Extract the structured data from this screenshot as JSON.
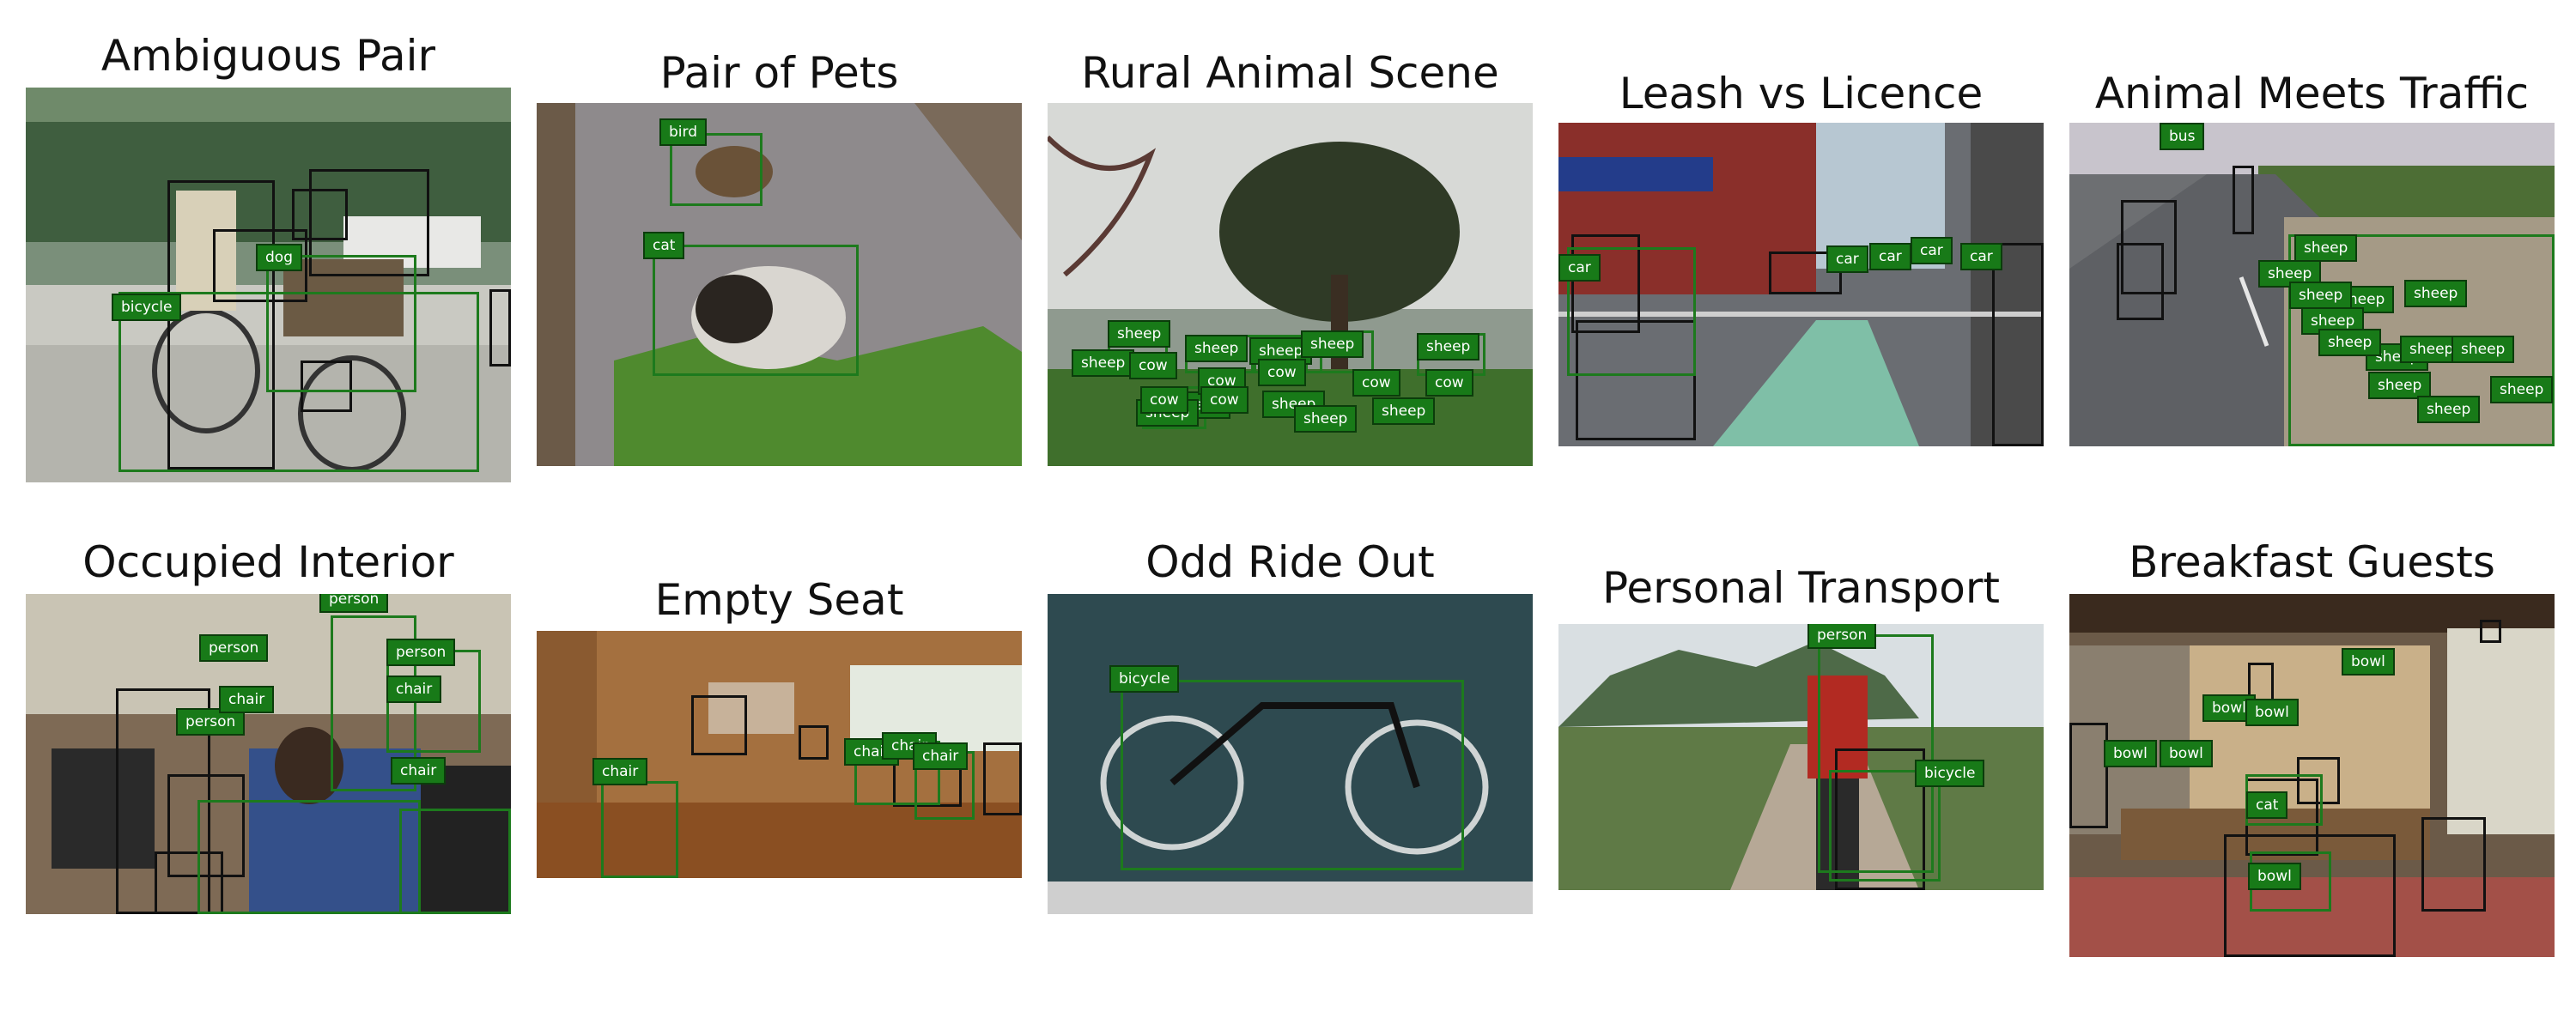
{
  "panels": [
    {
      "title": "Ambiguous Pair",
      "labels": [
        "bicycle",
        "dog"
      ]
    },
    {
      "title": "Pair of Pets",
      "labels": [
        "bird",
        "cat"
      ]
    },
    {
      "title": "Rural Animal Scene",
      "labels": [
        "sheep",
        "sheep",
        "sheep",
        "sheep",
        "sheep",
        "sheep",
        "sheep",
        "sheep",
        "sheep",
        "sheep",
        "sheep",
        "cow",
        "cow",
        "cow",
        "cow",
        "cow",
        "cow",
        "cow"
      ]
    },
    {
      "title": "Leash vs Licence",
      "labels": [
        "car",
        "car",
        "car",
        "car",
        "car"
      ]
    },
    {
      "title": "Animal Meets Traffic",
      "labels": [
        "bus",
        "sheep",
        "sheep",
        "sheep",
        "sheep",
        "sheep",
        "sheep",
        "sheep",
        "sheep",
        "sheep",
        "sheep",
        "sheep",
        "sheep",
        "sheep"
      ]
    },
    {
      "title": "Occupied Interior",
      "labels": [
        "person",
        "person",
        "person",
        "person",
        "chair",
        "chair",
        "chair"
      ]
    },
    {
      "title": "Empty Seat",
      "labels": [
        "chair",
        "chair",
        "chair",
        "chair"
      ]
    },
    {
      "title": "Odd Ride Out",
      "labels": [
        "bicycle"
      ]
    },
    {
      "title": "Personal Transport",
      "labels": [
        "person",
        "bicycle"
      ]
    },
    {
      "title": "Breakfast Guests",
      "labels": [
        "bowl",
        "bowl",
        "bowl",
        "bowl",
        "bowl",
        "cat",
        "bowl"
      ]
    }
  ],
  "colors": {
    "predicted_box": "#1d7a1d",
    "ground_truth_box": "#111111",
    "label_bg": "#187a18"
  }
}
